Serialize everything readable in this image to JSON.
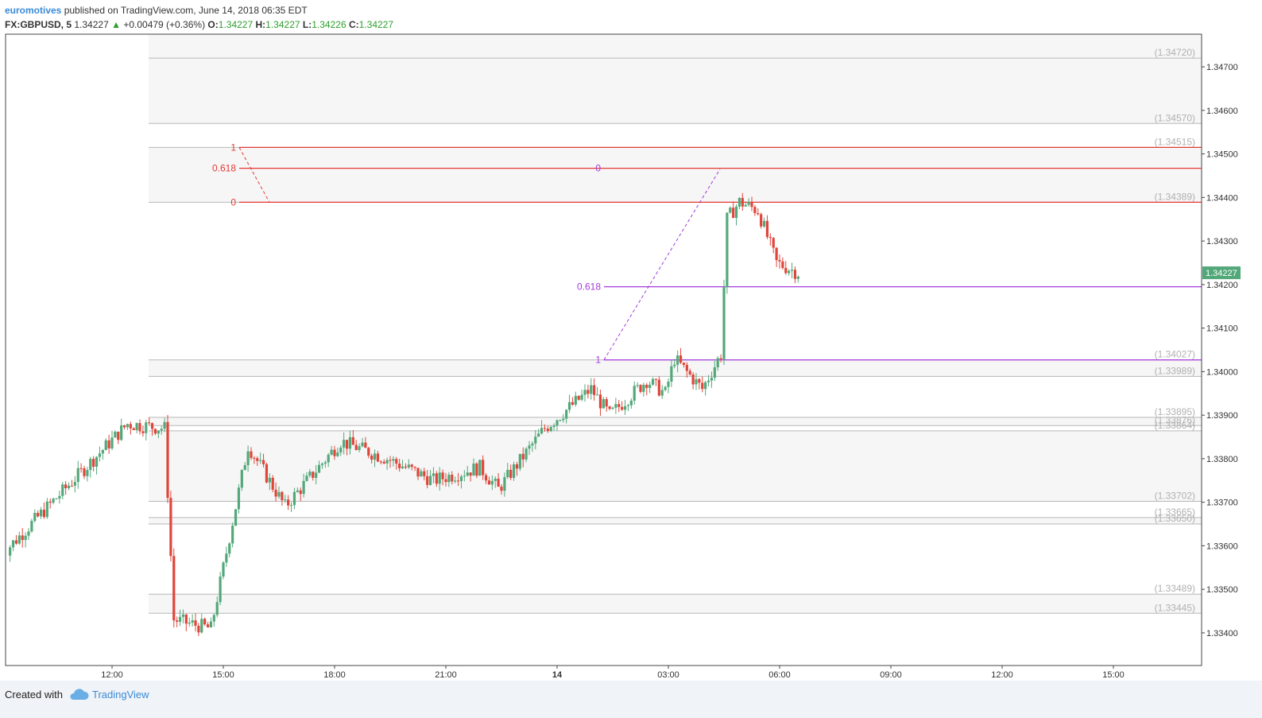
{
  "header": {
    "user": "euromotives",
    "published": "published on TradingView.com, June 14, 2018 06:35 EDT",
    "symbol": "FX:GBPUSD, 5",
    "price": "1.34227",
    "change": "+0.00479 (+0.36%)",
    "o_label": "O:",
    "o_value": "1.34227",
    "h_label": "H:",
    "h_value": "1.34227",
    "l_label": "L:",
    "l_value": "1.34226",
    "c_label": "C:",
    "c_value": "1.34227"
  },
  "footer": {
    "created": "Created with",
    "brand": "TradingView"
  },
  "colors": {
    "up": "#53a87a",
    "down": "#e0453a",
    "fib_red": "#e53935",
    "fib_purple": "#a23bd9",
    "level_line": "#b8b8b8",
    "price_tag": "#53a87a"
  },
  "chart_data": {
    "type": "candlestick",
    "symbol": "FX:GBPUSD",
    "timeframe": "5",
    "ylim": [
      1.33325,
      1.34775
    ],
    "x_ticks": [
      "12:00",
      "15:00",
      "18:00",
      "21:00",
      "14",
      "03:00",
      "06:00",
      "09:00",
      "12:00",
      "15:00"
    ],
    "y_ticks": [
      "1.34700",
      "1.34600",
      "1.34500",
      "1.34400",
      "1.34300",
      "1.34200",
      "1.34100",
      "1.34000",
      "1.33900",
      "1.33800",
      "1.33700",
      "1.33600",
      "1.33500",
      "1.33400"
    ],
    "last_price": "1.34227",
    "levels": [
      "(1.34720)",
      "(1.34570)",
      "(1.34515)",
      "(1.34389)",
      "(1.34027)",
      "(1.33989)",
      "(1.33895)",
      "(1.33876)",
      "(1.33864)",
      "(1.33702)",
      "(1.33665)",
      "(1.33650)",
      "(1.33489)",
      "(1.33445)"
    ],
    "fib_red": [
      {
        "label": "1",
        "price": 1.34515
      },
      {
        "label": "0.618",
        "price": 1.34467
      },
      {
        "label": "0",
        "price": 1.34389
      }
    ],
    "fib_purple": [
      {
        "label": "0",
        "price": 1.34467
      },
      {
        "label": "0.618",
        "price": 1.34195
      },
      {
        "label": "1",
        "price": 1.34027
      }
    ],
    "key_points": [
      {
        "time": "09:00",
        "price": 1.3357
      },
      {
        "time": "12:30",
        "price": 1.3388
      },
      {
        "time": "13:30",
        "price": 1.3387
      },
      {
        "time": "13:45",
        "price": 1.3343
      },
      {
        "time": "14:45",
        "price": 1.3341
      },
      {
        "time": "15:45",
        "price": 1.3383
      },
      {
        "time": "16:45",
        "price": 1.3369
      },
      {
        "time": "18:15",
        "price": 1.3384
      },
      {
        "time": "19:30",
        "price": 1.338
      },
      {
        "time": "20:45",
        "price": 1.3375
      },
      {
        "time": "22:00",
        "price": 1.3378
      },
      {
        "time": "22:30",
        "price": 1.3373
      },
      {
        "time": "23:45",
        "price": 1.3387
      },
      {
        "time": "01:00",
        "price": 1.3396
      },
      {
        "time": "01:30",
        "price": 1.339
      },
      {
        "time": "02:30",
        "price": 1.3398
      },
      {
        "time": "03:00",
        "price": 1.3395
      },
      {
        "time": "03:15",
        "price": 1.3403
      },
      {
        "time": "04:00",
        "price": 1.3396
      },
      {
        "time": "04:30",
        "price": 1.3404
      },
      {
        "time": "04:40",
        "price": 1.3435
      },
      {
        "time": "05:00",
        "price": 1.3439
      },
      {
        "time": "05:30",
        "price": 1.3437
      },
      {
        "time": "06:00",
        "price": 1.3425
      },
      {
        "time": "06:35",
        "price": 1.34227
      }
    ]
  }
}
